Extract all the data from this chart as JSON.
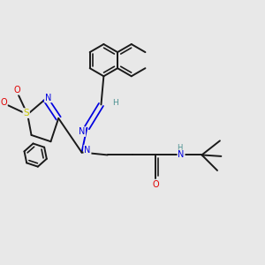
{
  "bg_color": "#e8e8e8",
  "bond_color": "#1a1a1a",
  "bond_width": 1.4,
  "atom_colors": {
    "N": "#0000e0",
    "O": "#e00000",
    "S": "#c8c800",
    "H_teal": "#4a9090",
    "C": "#1a1a1a"
  },
  "figsize": [
    3.0,
    3.0
  ],
  "dpi": 100
}
